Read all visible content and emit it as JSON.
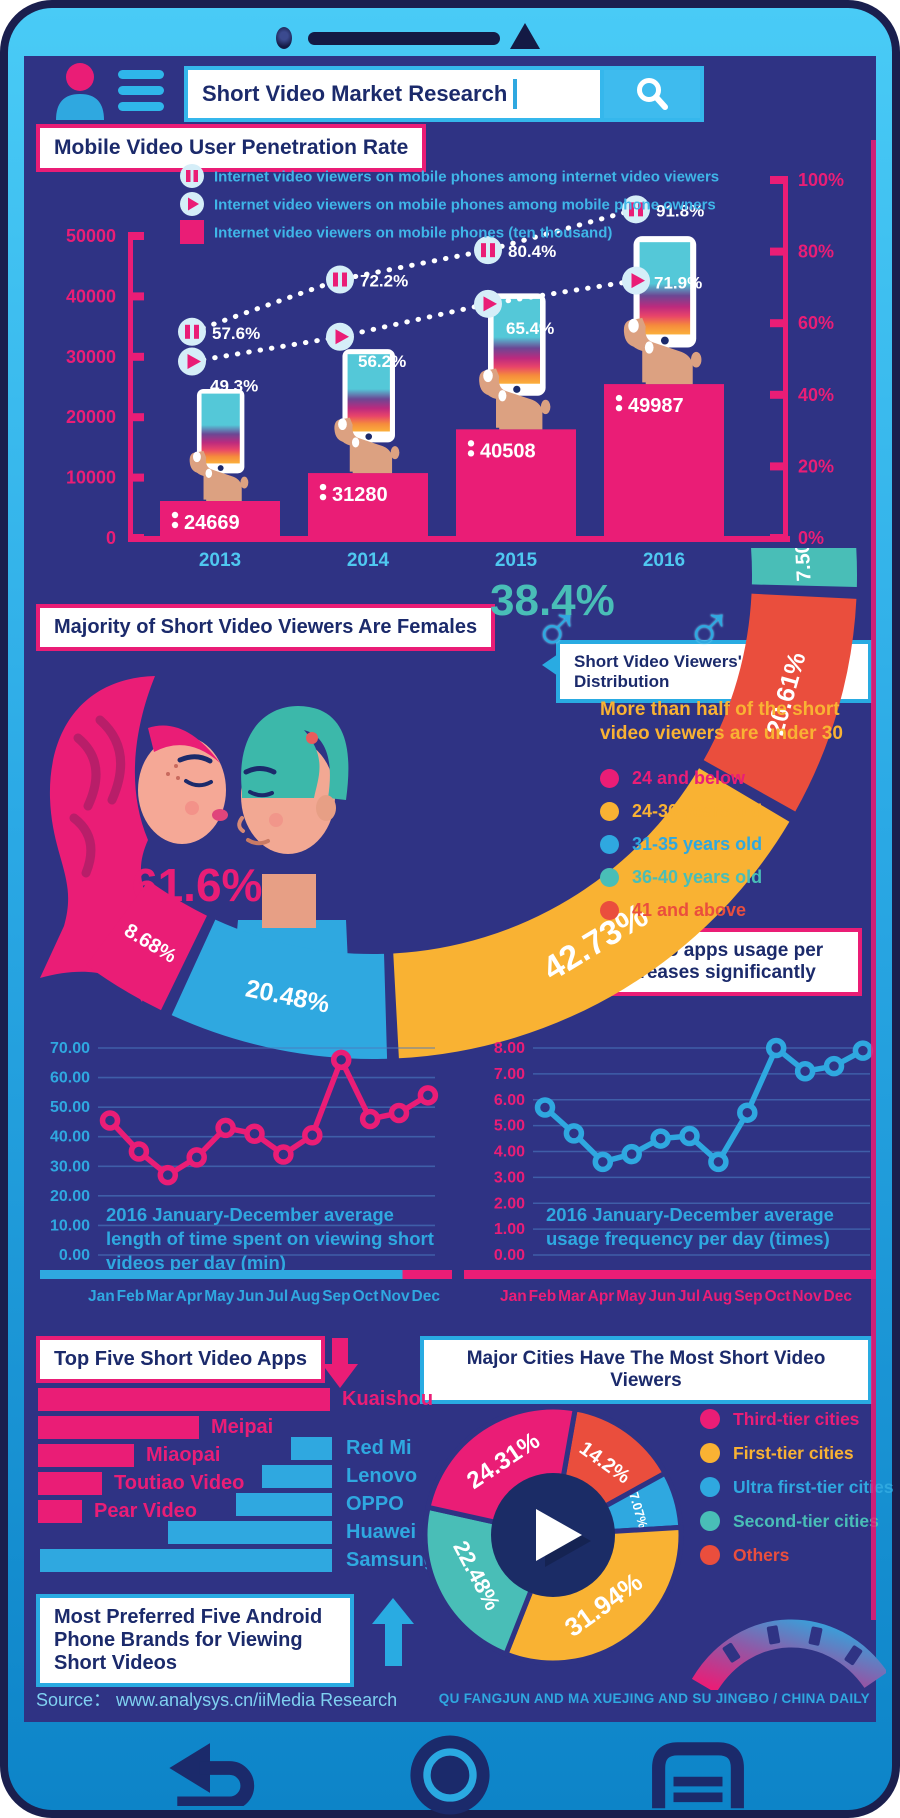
{
  "header": {
    "search_query": "Short Video Market Research"
  },
  "sections": {
    "penetration": {
      "title": "Mobile Video User Penetration Rate",
      "legend": [
        {
          "icon": "pause",
          "label": "Internet video viewers on mobile phones among internet video viewers"
        },
        {
          "icon": "play",
          "label": "Internet video viewers on mobile phones among mobile phone owners"
        },
        {
          "icon": "square",
          "label": "Internet video viewers on mobile phones (ten thousand)"
        }
      ]
    },
    "gender": {
      "title": "Majority of Short Video Viewers Are Females"
    },
    "age": {
      "title": "Short Video Viewers' Age Distribution",
      "note": "More than half of the short video viewers are under 30",
      "legend": [
        {
          "label": "24 and below",
          "color": "#EA1D76"
        },
        {
          "label": "24-30 years old",
          "color": "#F9B233"
        },
        {
          "label": "31-35 years old",
          "color": "#2FA8E0"
        },
        {
          "label": "36-40 years old",
          "color": "#49BEB7"
        },
        {
          "label": "41 and above",
          "color": "#EA4E3D"
        }
      ]
    },
    "usage": {
      "title": "Short video apps usage per day increases significantly"
    },
    "cities": {
      "legend": [
        {
          "label": "Third-tier cities",
          "color": "#EA1D76"
        },
        {
          "label": "First-tier cities",
          "color": "#F9B233"
        },
        {
          "label": "Ultra first-tier cities",
          "color": "#2FA8E0"
        },
        {
          "label": "Second-tier cities",
          "color": "#49BEB7"
        },
        {
          "label": "Others",
          "color": "#EA4E3D"
        }
      ]
    }
  },
  "months": [
    "Jan",
    "Feb",
    "Mar",
    "Apr",
    "May",
    "Jun",
    "Jul",
    "Aug",
    "Sep",
    "Oct",
    "Nov",
    "Dec"
  ],
  "footer": {
    "source": "Source：  www.analysys.cn/iiMedia Research",
    "credit": "QU FANGJUN AND MA XUEJING AND SU JINGBO / CHINA DAILY"
  },
  "palette": {
    "pink": "#EA1D76",
    "cyan": "#2FA8E0",
    "yellow": "#F9B233",
    "red": "#EA4E3D",
    "teal": "#49BEB7",
    "navy": "#1B2A6B",
    "screen_bg": "#2F3384"
  },
  "chart_data": [
    {
      "id": "penetration",
      "type": "bar",
      "title": "Mobile Video User Penetration Rate",
      "categories": [
        "2013",
        "2014",
        "2015",
        "2016"
      ],
      "series": [
        {
          "name": "Internet video viewers on mobile phones (ten thousand)",
          "type": "bar",
          "color": "#EA1D76",
          "values": [
            24669,
            31280,
            40508,
            49987
          ]
        },
        {
          "name": "Internet video viewers on mobile phones among internet video viewers",
          "type": "line",
          "marker": "pause",
          "unit": "%",
          "values": [
            57.6,
            72.2,
            80.4,
            91.8
          ]
        },
        {
          "name": "Internet video viewers on mobile phones among mobile phone owners",
          "type": "line",
          "marker": "play",
          "unit": "%",
          "values": [
            49.3,
            56.2,
            65.4,
            71.9
          ]
        }
      ],
      "left_axis": {
        "min": 0,
        "max": 50000,
        "step": 10000
      },
      "right_axis": {
        "min": 0,
        "max": 100,
        "step": 20,
        "unit": "%"
      }
    },
    {
      "id": "gender",
      "type": "pie",
      "title": "Majority of Short Video Viewers Are Females",
      "slices": [
        {
          "label": "Females",
          "value": 61.6,
          "display": "61.6%",
          "color": "#EA1D76"
        },
        {
          "label": "Males",
          "value": 38.4,
          "display": "38.4%",
          "color": "#49BEB7"
        }
      ]
    },
    {
      "id": "age",
      "type": "donut-arc",
      "title": "Short Video Viewers' Age Distribution",
      "note": "More than half of the short video viewers are under 30",
      "segments": [
        {
          "label": "36-40 years old",
          "value": 7.5,
          "display": "7.50%",
          "color": "#49BEB7"
        },
        {
          "label": "41 and above",
          "value": 20.61,
          "display": "20.61%",
          "color": "#EA4E3D"
        },
        {
          "label": "24-30 years old",
          "value": 42.73,
          "display": "42.73%",
          "color": "#F9B233"
        },
        {
          "label": "31-35 years old",
          "value": 20.48,
          "display": "20.48%",
          "color": "#2FA8E0"
        },
        {
          "label": "24 and below",
          "value": 8.68,
          "display": "8.68%",
          "color": "#EA1D76"
        }
      ]
    },
    {
      "id": "watch_time",
      "type": "line",
      "color": "#EA1D76",
      "axis_color": "#2FA8E0",
      "caption": "2016 January-December average length of time spent on viewing short videos per day (min)",
      "x": [
        "Jan",
        "Feb",
        "Mar",
        "Apr",
        "May",
        "Jun",
        "Jul",
        "Aug",
        "Sep",
        "Oct",
        "Nov",
        "Dec"
      ],
      "values": [
        45.5,
        35,
        27,
        33,
        43,
        41,
        34,
        40.5,
        66,
        46,
        48,
        54
      ],
      "ylim": [
        0,
        70
      ],
      "ystep": 10,
      "grid": true,
      "xlabel": "",
      "ylabel": ""
    },
    {
      "id": "frequency",
      "type": "line",
      "color": "#2FA8E0",
      "axis_color": "#EA1D76",
      "caption": "2016 January-December average usage frequency per day (times)",
      "x": [
        "Jan",
        "Feb",
        "Mar",
        "Apr",
        "May",
        "Jun",
        "Jul",
        "Aug",
        "Sep",
        "Oct",
        "Nov",
        "Dec"
      ],
      "values": [
        5.7,
        4.7,
        3.6,
        3.9,
        4.5,
        4.6,
        3.6,
        5.5,
        8.0,
        7.1,
        7.3,
        7.9
      ],
      "ylim": [
        0,
        8
      ],
      "ystep": 1,
      "grid": true,
      "xlabel": "",
      "ylabel": ""
    },
    {
      "id": "apps",
      "type": "bar",
      "title": "Top Five Short Video Apps",
      "unit": "relative-width",
      "color": "#EA1D76",
      "items": [
        {
          "label": "Kuaishou",
          "value": 1.0
        },
        {
          "label": "Meipai",
          "value": 0.55
        },
        {
          "label": "Miaopai",
          "value": 0.33
        },
        {
          "label": "Toutiao Video",
          "value": 0.22
        },
        {
          "label": "Pear Video",
          "value": 0.15
        }
      ]
    },
    {
      "id": "android_phones",
      "type": "bar",
      "title": "Most Preferred Five Android Phone Brands for Viewing Short Videos",
      "unit": "relative-width",
      "color": "#2FA8E0",
      "items": [
        {
          "label": "Red Mi",
          "value": 0.14
        },
        {
          "label": "Lenovo",
          "value": 0.24
        },
        {
          "label": "OPPO",
          "value": 0.33
        },
        {
          "label": "Huawei",
          "value": 0.56
        },
        {
          "label": "Samsung",
          "value": 1.0
        }
      ]
    },
    {
      "id": "cities",
      "type": "donut",
      "title": "Major Cities Have The Most Short Video Viewers",
      "start_angle_deg_from_north": 10,
      "segments": [
        {
          "label": "Others",
          "value": 14.2,
          "display": "14.2%",
          "color": "#EA4E3D"
        },
        {
          "label": "Ultra first-tier cities",
          "value": 7.07,
          "display": "7.07%",
          "color": "#2FA8E0"
        },
        {
          "label": "First-tier cities",
          "value": 31.94,
          "display": "31.94%",
          "color": "#F9B233"
        },
        {
          "label": "Second-tier cities",
          "value": 22.48,
          "display": "22.48%",
          "color": "#49BEB7"
        },
        {
          "label": "Third-tier cities",
          "value": 24.31,
          "display": "24.31%",
          "color": "#EA1D76"
        }
      ]
    }
  ]
}
